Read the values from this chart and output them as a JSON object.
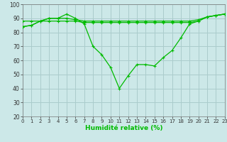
{
  "title": "",
  "xlabel": "Humidité relative (%)",
  "ylabel": "",
  "background_color": "#cce8e8",
  "grid_color": "#aacccc",
  "line_color": "#00bb00",
  "x": [
    0,
    1,
    2,
    3,
    4,
    5,
    6,
    7,
    8,
    9,
    10,
    11,
    12,
    13,
    14,
    15,
    16,
    17,
    18,
    19,
    20,
    21,
    22,
    23
  ],
  "y_main": [
    84,
    85,
    88,
    90,
    90,
    93,
    90,
    86,
    70,
    64,
    55,
    40,
    49,
    57,
    57,
    56,
    62,
    67,
    76,
    86,
    88,
    91,
    92,
    93
  ],
  "y_upper": [
    88,
    88,
    88,
    90,
    90,
    90,
    89,
    88,
    88,
    88,
    88,
    88,
    88,
    88,
    88,
    88,
    88,
    88,
    88,
    88,
    89,
    91,
    92,
    93
  ],
  "y_lower": [
    84,
    85,
    88,
    88,
    88,
    88,
    88,
    87,
    87,
    87,
    87,
    87,
    87,
    87,
    87,
    87,
    87,
    87,
    87,
    87,
    88,
    91,
    92,
    93
  ],
  "ylim": [
    20,
    100
  ],
  "xlim": [
    0,
    23
  ],
  "yticks": [
    20,
    30,
    40,
    50,
    60,
    70,
    80,
    90,
    100
  ],
  "xticks": [
    0,
    1,
    2,
    3,
    4,
    5,
    6,
    7,
    8,
    9,
    10,
    11,
    12,
    13,
    14,
    15,
    16,
    17,
    18,
    19,
    20,
    21,
    22,
    23
  ],
  "xlabel_fontsize": 6.5,
  "tick_fontsize": 5.5,
  "marker_size": 3.0,
  "line_width": 0.9
}
